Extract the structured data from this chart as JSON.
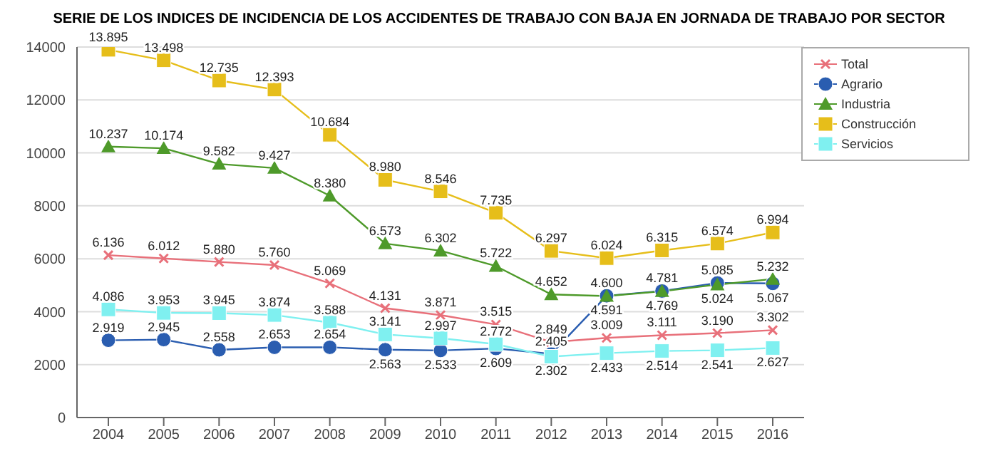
{
  "chart_data": {
    "type": "line",
    "title": "SERIE DE LOS INDICES DE INCIDENCIA DE LOS ACCIDENTES DE TRABAJO CON BAJA EN JORNADA DE TRABAJO POR SECTOR",
    "categories": [
      "2004",
      "2005",
      "2006",
      "2007",
      "2008",
      "2009",
      "2010",
      "2011",
      "2012",
      "2013",
      "2014",
      "2015",
      "2016"
    ],
    "ylim": [
      0,
      14000
    ],
    "yticks": [
      0,
      2000,
      4000,
      6000,
      8000,
      10000,
      12000,
      14000
    ],
    "grid": "y",
    "legend": "top right",
    "series": [
      {
        "name": "Total",
        "color": "#e8707a",
        "marker": "cross",
        "values": [
          6136,
          6012,
          5880,
          5760,
          5069,
          4131,
          3871,
          3515,
          2849,
          3009,
          3111,
          3190,
          3302
        ],
        "value_labels": [
          "6.136",
          "6.012",
          "5.880",
          "5.760",
          "5.069",
          "4.131",
          "3.871",
          "3.515",
          "2.849",
          "3.009",
          "3.111",
          "3.190",
          "3.302"
        ]
      },
      {
        "name": "Agrario",
        "color": "#2a5db0",
        "marker": "circle",
        "values": [
          2919,
          2945,
          2558,
          2653,
          2654,
          2563,
          2533,
          2609,
          2405,
          4600,
          4781,
          5085,
          5067
        ],
        "value_labels": [
          "2.919",
          "2.945",
          "2.558",
          "2.653",
          "2.654",
          "2.563",
          "2.533",
          "2.609",
          "2.405",
          "4.600",
          "4.781",
          "5.085",
          "5.067"
        ]
      },
      {
        "name": "Industria",
        "color": "#4e9a2a",
        "marker": "triangle",
        "values": [
          10237,
          10174,
          9582,
          9427,
          8380,
          6573,
          6302,
          5722,
          4652,
          4591,
          4769,
          5024,
          5232
        ],
        "value_labels": [
          "10.237",
          "10.174",
          "9.582",
          "9.427",
          "8.380",
          "6.573",
          "6.302",
          "5.722",
          "4.652",
          "4.591",
          "4.769",
          "5.024",
          "5.232"
        ]
      },
      {
        "name": "Construcción",
        "color": "#e6be1a",
        "marker": "square",
        "values": [
          13895,
          13498,
          12735,
          12393,
          10684,
          8980,
          8546,
          7735,
          6297,
          6024,
          6315,
          6574,
          6994
        ],
        "value_labels": [
          "13.895",
          "13.498",
          "12.735",
          "12.393",
          "10.684",
          "8.980",
          "8.546",
          "7.735",
          "6.297",
          "6.024",
          "6.315",
          "6.574",
          "6.994"
        ]
      },
      {
        "name": "Servicios",
        "color": "#7ff0f0",
        "marker": "square",
        "values": [
          4086,
          3953,
          3945,
          3874,
          3588,
          3141,
          2997,
          2772,
          2302,
          2433,
          2514,
          2541,
          2627
        ],
        "value_labels": [
          "4.086",
          "3.953",
          "3.945",
          "3.874",
          "3.588",
          "3.141",
          "2.997",
          "2.772",
          "2.302",
          "2.433",
          "2.514",
          "2.541",
          "2.627"
        ]
      }
    ]
  }
}
